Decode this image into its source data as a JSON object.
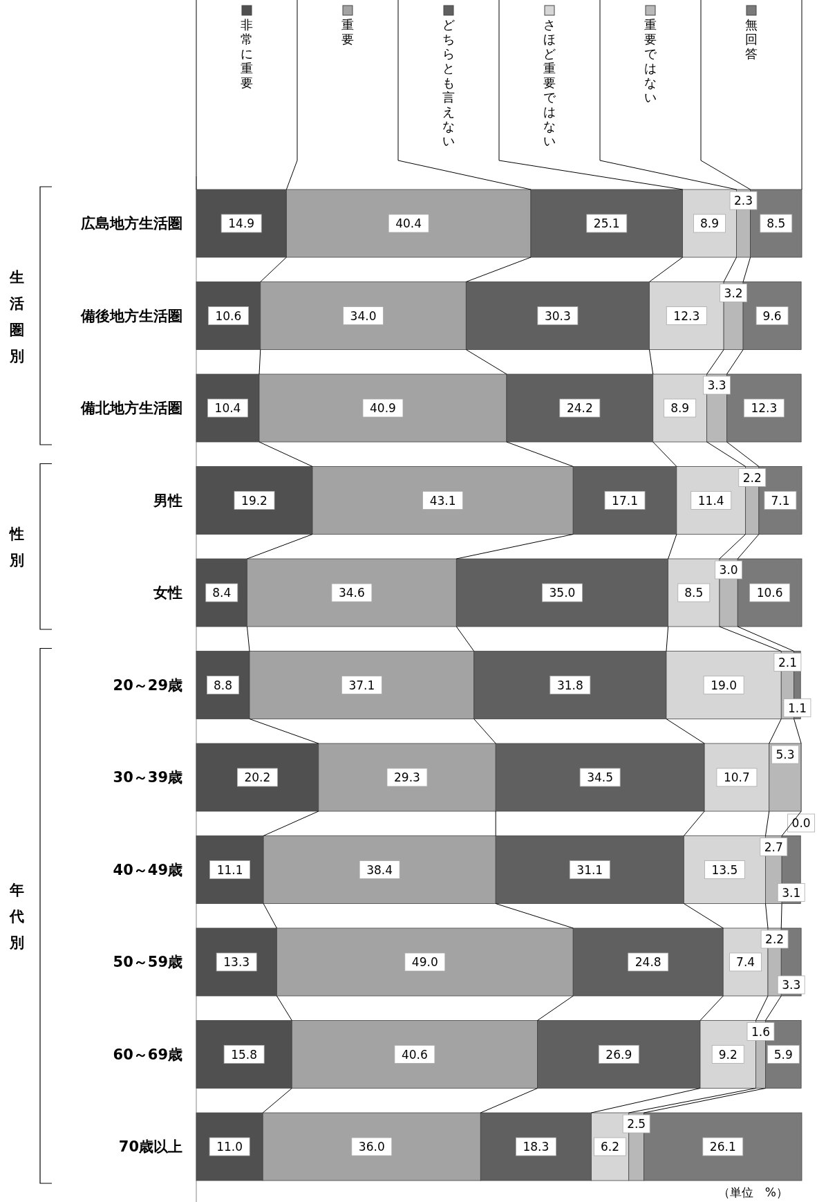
{
  "chart_data": {
    "type": "bar",
    "orientation": "horizontal",
    "stacked": true,
    "legend": "top",
    "categories": [
      "広島地方生活圏",
      "備後地方生活圏",
      "備北地方生活圏",
      "男性",
      "女性",
      "20～29歳",
      "30～39歳",
      "40～49歳",
      "50～59歳",
      "60～69歳",
      "70歳以上"
    ],
    "series": [
      {
        "name": "非常に重要",
        "color": "#505050",
        "values": [
          14.9,
          10.6,
          10.4,
          19.2,
          8.4,
          8.8,
          20.2,
          11.1,
          13.3,
          15.8,
          11.0
        ],
        "value_labels": [
          "14.9",
          "10.6",
          "10.4",
          "19.2",
          "8.4",
          "8.8",
          "20.2",
          "11.1",
          "13.3",
          "15.8",
          "11.0"
        ]
      },
      {
        "name": "重要",
        "color": "#a3a3a3",
        "values": [
          40.4,
          34.0,
          40.9,
          43.1,
          34.6,
          37.1,
          29.3,
          38.4,
          49.0,
          40.6,
          36.0
        ],
        "value_labels": [
          "40.4",
          "34.0",
          "40.9",
          "43.1",
          "34.6",
          "37.1",
          "29.3",
          "38.4",
          "49.0",
          "40.6",
          "36.0"
        ]
      },
      {
        "name": "どちらとも言えない",
        "color": "#606060",
        "values": [
          25.1,
          30.3,
          24.2,
          17.1,
          35.0,
          31.8,
          34.5,
          31.1,
          24.8,
          26.9,
          18.3
        ],
        "value_labels": [
          "25.1",
          "30.3",
          "24.2",
          "17.1",
          "35.0",
          "31.8",
          "34.5",
          "31.1",
          "24.8",
          "26.9",
          "18.3"
        ]
      },
      {
        "name": "さほど重要ではない",
        "color": "#d6d6d6",
        "values": [
          8.9,
          12.3,
          8.9,
          11.4,
          8.5,
          19.0,
          10.7,
          13.5,
          7.4,
          9.2,
          6.2
        ],
        "value_labels": [
          "8.9",
          "12.3",
          "8.9",
          "11.4",
          "8.5",
          "19.0",
          "10.7",
          "13.5",
          "7.4",
          "9.2",
          "6.2"
        ]
      },
      {
        "name": "重要ではない",
        "color": "#b8b8b8",
        "values": [
          2.3,
          3.2,
          3.3,
          2.2,
          3.0,
          2.1,
          5.3,
          2.7,
          2.2,
          1.6,
          2.5
        ],
        "value_labels": [
          "2.3",
          "3.2",
          "3.3",
          "2.2",
          "3.0",
          "2.1",
          "5.3",
          "2.7",
          "2.2",
          "1.6",
          "2.5"
        ]
      },
      {
        "name": "無回答",
        "color": "#7a7a7a",
        "values": [
          8.5,
          9.6,
          12.3,
          7.1,
          10.6,
          1.1,
          0.0,
          3.1,
          3.3,
          5.9,
          26.1
        ],
        "value_labels": [
          "8.5",
          "9.6",
          "12.3",
          "7.1",
          "10.6",
          "1.1",
          "0.0",
          "3.1",
          "3.3",
          "5.9",
          "26.1"
        ]
      }
    ],
    "annotations": [
      "（単位　%）",
      "生活圏別",
      "性別",
      "年代別"
    ]
  }
}
